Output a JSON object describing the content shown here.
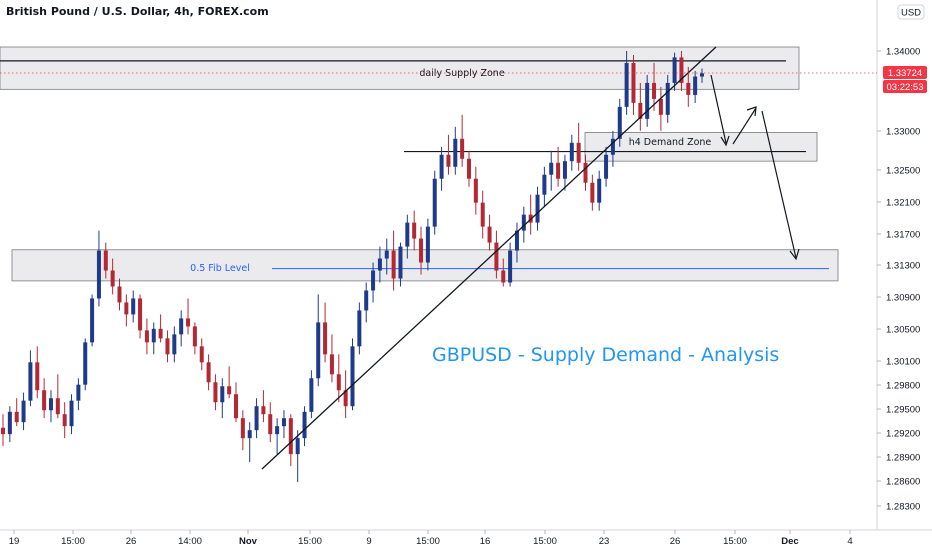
{
  "header": {
    "title": "British Pound / U.S. Dollar, 4h, FOREX.com"
  },
  "chart_data": {
    "type": "candlestick",
    "title": "GBPUSD - Supply Demand - Analysis",
    "currency_label": "USD",
    "ylim": [
      1.2808,
      1.3432
    ],
    "y_ticks": [
      "1.34000",
      "1.33000",
      "1.32500",
      "1.32100",
      "1.31700",
      "1.31300",
      "1.30900",
      "1.30500",
      "1.30100",
      "1.29800",
      "1.29500",
      "1.29200",
      "1.28900",
      "1.28600",
      "1.28300"
    ],
    "x_ticks": [
      "19",
      "15:00",
      "26",
      "14:00",
      "Nov",
      "15:00",
      "9",
      "15:00",
      "16",
      "15:00",
      "23",
      "26",
      "15:00",
      "Dec",
      "4"
    ],
    "current_price": "1.33724",
    "countdown": "03:22:53",
    "zones": [
      {
        "label": "daily Supply Zone",
        "top": 1.3405,
        "bottom": 1.3352,
        "line": 1.33876
      },
      {
        "label": "h4 Demand Zone",
        "top": 1.3298,
        "bottom": 1.3262,
        "line": 1.3274
      },
      {
        "label": "0.5 Fib Level",
        "top": 1.3151,
        "bottom": 1.3112,
        "line": 1.31274
      }
    ],
    "candles_ohlc": [
      [
        1.2928,
        1.2945,
        1.2905,
        1.292
      ],
      [
        1.292,
        1.2955,
        1.291,
        1.2948
      ],
      [
        1.2948,
        1.2965,
        1.293,
        1.2935
      ],
      [
        1.2935,
        1.2972,
        1.2925,
        1.2962
      ],
      [
        1.2962,
        1.3025,
        1.2955,
        1.301
      ],
      [
        1.301,
        1.303,
        1.2965,
        1.2975
      ],
      [
        1.2975,
        1.299,
        1.294,
        1.295
      ],
      [
        1.295,
        1.2975,
        1.2935,
        1.2965
      ],
      [
        1.2965,
        1.2995,
        1.294,
        1.2945
      ],
      [
        1.2945,
        1.296,
        1.2915,
        1.293
      ],
      [
        1.293,
        1.297,
        1.292,
        1.2962
      ],
      [
        1.2962,
        1.299,
        1.295,
        1.2982
      ],
      [
        1.2982,
        1.304,
        1.2975,
        1.3035
      ],
      [
        1.3035,
        1.3095,
        1.303,
        1.309
      ],
      [
        1.309,
        1.3175,
        1.308,
        1.315
      ],
      [
        1.315,
        1.316,
        1.3115,
        1.3125
      ],
      [
        1.3125,
        1.314,
        1.3095,
        1.3105
      ],
      [
        1.3105,
        1.3115,
        1.3075,
        1.3085
      ],
      [
        1.3085,
        1.3095,
        1.3055,
        1.307
      ],
      [
        1.307,
        1.31,
        1.306,
        1.309
      ],
      [
        1.309,
        1.3095,
        1.304,
        1.305
      ],
      [
        1.305,
        1.3065,
        1.302,
        1.3035
      ],
      [
        1.3035,
        1.306,
        1.302,
        1.3052
      ],
      [
        1.3052,
        1.307,
        1.3035,
        1.304
      ],
      [
        1.304,
        1.305,
        1.301,
        1.302
      ],
      [
        1.302,
        1.3055,
        1.301,
        1.3045
      ],
      [
        1.3045,
        1.3075,
        1.303,
        1.3065
      ],
      [
        1.3065,
        1.309,
        1.3045,
        1.3055
      ],
      [
        1.3055,
        1.306,
        1.302,
        1.303
      ],
      [
        1.303,
        1.304,
        1.3,
        1.301
      ],
      [
        1.301,
        1.302,
        1.2975,
        1.2985
      ],
      [
        1.2985,
        1.2995,
        1.295,
        1.296
      ],
      [
        1.296,
        1.299,
        1.294,
        1.298
      ],
      [
        1.298,
        1.3005,
        1.2965,
        1.297
      ],
      [
        1.297,
        1.2985,
        1.2935,
        1.294
      ],
      [
        1.294,
        1.295,
        1.29,
        1.2915
      ],
      [
        1.2915,
        1.2935,
        1.2885,
        1.2925
      ],
      [
        1.2925,
        1.2965,
        1.2915,
        1.2955
      ],
      [
        1.2955,
        1.2975,
        1.2935,
        1.2945
      ],
      [
        1.2945,
        1.296,
        1.291,
        1.292
      ],
      [
        1.292,
        1.294,
        1.2895,
        1.293
      ],
      [
        1.293,
        1.295,
        1.2915,
        1.294
      ],
      [
        1.294,
        1.2945,
        1.288,
        1.2895
      ],
      [
        1.2895,
        1.2925,
        1.286,
        1.2915
      ],
      [
        1.2915,
        1.2955,
        1.2905,
        1.2948
      ],
      [
        1.2948,
        1.3,
        1.294,
        1.299
      ],
      [
        1.299,
        1.3095,
        1.298,
        1.306
      ],
      [
        1.306,
        1.3085,
        1.301,
        1.302
      ],
      [
        1.302,
        1.3045,
        1.2985,
        1.2995
      ],
      [
        1.2995,
        1.302,
        1.296,
        1.2975
      ],
      [
        1.2975,
        1.3,
        1.294,
        1.2955
      ],
      [
        1.2955,
        1.304,
        1.295,
        1.303
      ],
      [
        1.303,
        1.3085,
        1.302,
        1.3075
      ],
      [
        1.3075,
        1.311,
        1.306,
        1.31
      ],
      [
        1.31,
        1.3135,
        1.3085,
        1.3125
      ],
      [
        1.3125,
        1.3155,
        1.311,
        1.314
      ],
      [
        1.314,
        1.3165,
        1.312,
        1.315
      ],
      [
        1.315,
        1.3175,
        1.31,
        1.3115
      ],
      [
        1.3115,
        1.316,
        1.3105,
        1.3155
      ],
      [
        1.3155,
        1.3195,
        1.314,
        1.3185
      ],
      [
        1.3185,
        1.32,
        1.315,
        1.3165
      ],
      [
        1.3165,
        1.318,
        1.312,
        1.3135
      ],
      [
        1.3135,
        1.319,
        1.3125,
        1.318
      ],
      [
        1.318,
        1.325,
        1.317,
        1.324
      ],
      [
        1.324,
        1.328,
        1.3225,
        1.327
      ],
      [
        1.327,
        1.3295,
        1.3245,
        1.3255
      ],
      [
        1.3255,
        1.3305,
        1.3245,
        1.329
      ],
      [
        1.329,
        1.332,
        1.3255,
        1.3265
      ],
      [
        1.3265,
        1.3275,
        1.323,
        1.324
      ],
      [
        1.324,
        1.3255,
        1.3195,
        1.321
      ],
      [
        1.321,
        1.3225,
        1.3165,
        1.318
      ],
      [
        1.318,
        1.3195,
        1.315,
        1.316
      ],
      [
        1.316,
        1.3175,
        1.3115,
        1.3125
      ],
      [
        1.3125,
        1.314,
        1.3105,
        1.311
      ],
      [
        1.311,
        1.316,
        1.3105,
        1.315
      ],
      [
        1.315,
        1.3185,
        1.3135,
        1.3175
      ],
      [
        1.3175,
        1.3205,
        1.316,
        1.3195
      ],
      [
        1.3195,
        1.322,
        1.317,
        1.3185
      ],
      [
        1.3185,
        1.323,
        1.3175,
        1.322
      ],
      [
        1.322,
        1.3255,
        1.3205,
        1.3245
      ],
      [
        1.3245,
        1.3275,
        1.3225,
        1.326
      ],
      [
        1.326,
        1.328,
        1.323,
        1.324
      ],
      [
        1.324,
        1.327,
        1.3225,
        1.3262
      ],
      [
        1.3262,
        1.3295,
        1.325,
        1.3285
      ],
      [
        1.3285,
        1.331,
        1.325,
        1.326
      ],
      [
        1.326,
        1.327,
        1.3225,
        1.3235
      ],
      [
        1.3235,
        1.3245,
        1.32,
        1.321
      ],
      [
        1.321,
        1.325,
        1.32,
        1.324
      ],
      [
        1.324,
        1.328,
        1.323,
        1.327
      ],
      [
        1.327,
        1.33,
        1.3255,
        1.329
      ],
      [
        1.329,
        1.334,
        1.328,
        1.333
      ],
      [
        1.333,
        1.34,
        1.332,
        1.3385
      ],
      [
        1.3385,
        1.3395,
        1.332,
        1.3335
      ],
      [
        1.3335,
        1.336,
        1.33,
        1.3315
      ],
      [
        1.3315,
        1.337,
        1.3305,
        1.336
      ],
      [
        1.336,
        1.3385,
        1.3325,
        1.334
      ],
      [
        1.334,
        1.3355,
        1.33,
        1.332
      ],
      [
        1.332,
        1.337,
        1.331,
        1.336
      ],
      [
        1.336,
        1.3398,
        1.335,
        1.3392
      ],
      [
        1.3392,
        1.34,
        1.335,
        1.336
      ],
      [
        1.336,
        1.338,
        1.333,
        1.3345
      ],
      [
        1.3345,
        1.3375,
        1.3335,
        1.3368
      ],
      [
        1.3368,
        1.3378,
        1.336,
        1.3372
      ]
    ]
  }
}
